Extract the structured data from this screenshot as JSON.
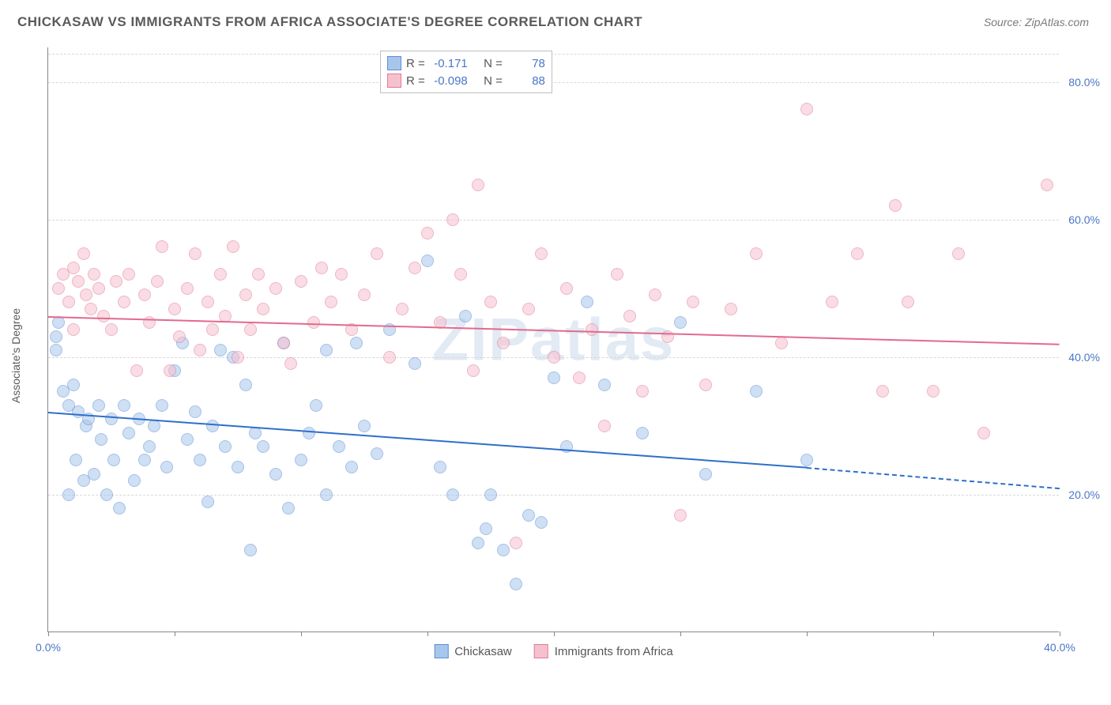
{
  "title": "CHICKASAW VS IMMIGRANTS FROM AFRICA ASSOCIATE'S DEGREE CORRELATION CHART",
  "source_label": "Source: ZipAtlas.com",
  "y_axis_label": "Associate's Degree",
  "watermark": "ZIPatlas",
  "chart": {
    "x_min": 0,
    "x_max": 40,
    "y_min": 0,
    "y_max": 85,
    "x_ticks": [
      0,
      5,
      10,
      15,
      20,
      25,
      30,
      35,
      40
    ],
    "x_tick_labels": {
      "0": "0.0%",
      "40": "40.0%"
    },
    "y_ticks": [
      20,
      40,
      60,
      80
    ],
    "y_tick_labels": {
      "20": "20.0%",
      "40": "40.0%",
      "60": "60.0%",
      "80": "80.0%"
    },
    "background": "#ffffff",
    "grid_color": "#d8d8d8",
    "point_radius": 8,
    "point_opacity": 0.55
  },
  "series": [
    {
      "name": "Chickasaw",
      "fill": "#a8c6ec",
      "stroke": "#5b8fd6",
      "line_color": "#2f6fc9",
      "R": "-0.171",
      "N": "78",
      "trend": {
        "x1": 0,
        "y1": 32,
        "x2": 30,
        "y2": 24,
        "dash_after_x": 30,
        "x2_dash": 40,
        "y2_dash": 21
      },
      "points": [
        [
          0.3,
          43
        ],
        [
          0.3,
          41
        ],
        [
          0.4,
          45
        ],
        [
          0.6,
          35
        ],
        [
          0.8,
          33
        ],
        [
          0.8,
          20
        ],
        [
          1.0,
          36
        ],
        [
          1.1,
          25
        ],
        [
          1.2,
          32
        ],
        [
          1.4,
          22
        ],
        [
          1.5,
          30
        ],
        [
          1.6,
          31
        ],
        [
          1.8,
          23
        ],
        [
          2.0,
          33
        ],
        [
          2.1,
          28
        ],
        [
          2.3,
          20
        ],
        [
          2.5,
          31
        ],
        [
          2.6,
          25
        ],
        [
          2.8,
          18
        ],
        [
          3.0,
          33
        ],
        [
          3.2,
          29
        ],
        [
          3.4,
          22
        ],
        [
          3.6,
          31
        ],
        [
          3.8,
          25
        ],
        [
          4.0,
          27
        ],
        [
          4.2,
          30
        ],
        [
          4.5,
          33
        ],
        [
          4.7,
          24
        ],
        [
          5.0,
          38
        ],
        [
          5.3,
          42
        ],
        [
          5.5,
          28
        ],
        [
          5.8,
          32
        ],
        [
          6.0,
          25
        ],
        [
          6.3,
          19
        ],
        [
          6.5,
          30
        ],
        [
          6.8,
          41
        ],
        [
          7.0,
          27
        ],
        [
          7.3,
          40
        ],
        [
          7.5,
          24
        ],
        [
          7.8,
          36
        ],
        [
          8.0,
          12
        ],
        [
          8.2,
          29
        ],
        [
          8.5,
          27
        ],
        [
          9.0,
          23
        ],
        [
          9.3,
          42
        ],
        [
          9.5,
          18
        ],
        [
          10.0,
          25
        ],
        [
          10.3,
          29
        ],
        [
          10.6,
          33
        ],
        [
          11.0,
          41
        ],
        [
          11.0,
          20
        ],
        [
          11.5,
          27
        ],
        [
          12.0,
          24
        ],
        [
          12.2,
          42
        ],
        [
          12.5,
          30
        ],
        [
          13.0,
          26
        ],
        [
          13.5,
          44
        ],
        [
          14.5,
          39
        ],
        [
          15.0,
          54
        ],
        [
          15.5,
          24
        ],
        [
          16.0,
          20
        ],
        [
          16.5,
          46
        ],
        [
          17.0,
          13
        ],
        [
          17.3,
          15
        ],
        [
          17.5,
          20
        ],
        [
          18.0,
          12
        ],
        [
          18.5,
          7
        ],
        [
          19.0,
          17
        ],
        [
          19.5,
          16
        ],
        [
          20.0,
          37
        ],
        [
          20.5,
          27
        ],
        [
          21.3,
          48
        ],
        [
          22.0,
          36
        ],
        [
          23.5,
          29
        ],
        [
          25.0,
          45
        ],
        [
          26.0,
          23
        ],
        [
          28.0,
          35
        ],
        [
          30.0,
          25
        ]
      ]
    },
    {
      "name": "Immigrants from Africa",
      "fill": "#f6c1cf",
      "stroke": "#e07a98",
      "line_color": "#e26a8e",
      "R": "-0.098",
      "N": "88",
      "trend": {
        "x1": 0,
        "y1": 46,
        "x2": 40,
        "y2": 42
      },
      "points": [
        [
          0.4,
          50
        ],
        [
          0.6,
          52
        ],
        [
          0.8,
          48
        ],
        [
          1.0,
          53
        ],
        [
          1.0,
          44
        ],
        [
          1.2,
          51
        ],
        [
          1.4,
          55
        ],
        [
          1.5,
          49
        ],
        [
          1.7,
          47
        ],
        [
          1.8,
          52
        ],
        [
          2.0,
          50
        ],
        [
          2.2,
          46
        ],
        [
          2.5,
          44
        ],
        [
          2.7,
          51
        ],
        [
          3.0,
          48
        ],
        [
          3.2,
          52
        ],
        [
          3.5,
          38
        ],
        [
          3.8,
          49
        ],
        [
          4.0,
          45
        ],
        [
          4.3,
          51
        ],
        [
          4.5,
          56
        ],
        [
          4.8,
          38
        ],
        [
          5.0,
          47
        ],
        [
          5.2,
          43
        ],
        [
          5.5,
          50
        ],
        [
          5.8,
          55
        ],
        [
          6.0,
          41
        ],
        [
          6.3,
          48
        ],
        [
          6.5,
          44
        ],
        [
          6.8,
          52
        ],
        [
          7.0,
          46
        ],
        [
          7.3,
          56
        ],
        [
          7.5,
          40
        ],
        [
          7.8,
          49
        ],
        [
          8.0,
          44
        ],
        [
          8.3,
          52
        ],
        [
          8.5,
          47
        ],
        [
          9.0,
          50
        ],
        [
          9.3,
          42
        ],
        [
          9.6,
          39
        ],
        [
          10.0,
          51
        ],
        [
          10.5,
          45
        ],
        [
          10.8,
          53
        ],
        [
          11.2,
          48
        ],
        [
          11.6,
          52
        ],
        [
          12.0,
          44
        ],
        [
          12.5,
          49
        ],
        [
          13.0,
          55
        ],
        [
          13.5,
          40
        ],
        [
          14.0,
          47
        ],
        [
          14.5,
          53
        ],
        [
          15.0,
          58
        ],
        [
          15.5,
          45
        ],
        [
          16.0,
          60
        ],
        [
          16.3,
          52
        ],
        [
          16.8,
          38
        ],
        [
          17.0,
          65
        ],
        [
          17.5,
          48
        ],
        [
          18.0,
          42
        ],
        [
          18.5,
          13
        ],
        [
          19.0,
          47
        ],
        [
          19.5,
          55
        ],
        [
          20.0,
          40
        ],
        [
          20.5,
          50
        ],
        [
          21.0,
          37
        ],
        [
          21.5,
          44
        ],
        [
          22.0,
          30
        ],
        [
          22.5,
          52
        ],
        [
          23.0,
          46
        ],
        [
          23.5,
          35
        ],
        [
          24.0,
          49
        ],
        [
          24.5,
          43
        ],
        [
          25.0,
          17
        ],
        [
          25.5,
          48
        ],
        [
          26.0,
          36
        ],
        [
          27.0,
          47
        ],
        [
          28.0,
          55
        ],
        [
          29.0,
          42
        ],
        [
          30.0,
          76
        ],
        [
          31.0,
          48
        ],
        [
          32.0,
          55
        ],
        [
          33.0,
          35
        ],
        [
          33.5,
          62
        ],
        [
          34.0,
          48
        ],
        [
          35.0,
          35
        ],
        [
          36.0,
          55
        ],
        [
          37.0,
          29
        ],
        [
          39.5,
          65
        ]
      ]
    }
  ],
  "legend": {
    "r_label": "R =",
    "n_label": "N ="
  }
}
